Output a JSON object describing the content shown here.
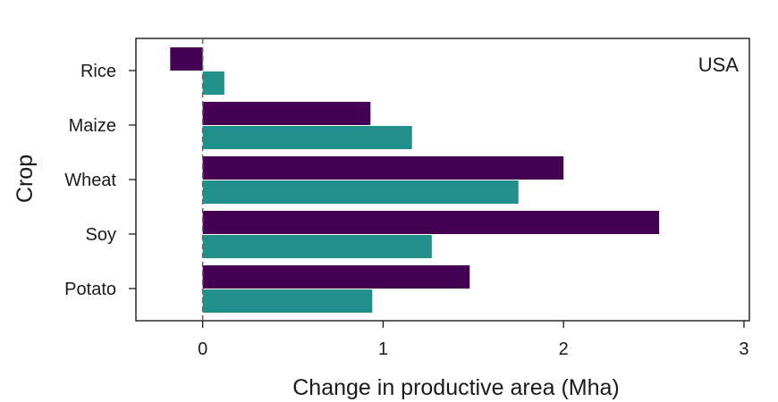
{
  "chart_data": {
    "type": "bar",
    "orientation": "horizontal",
    "panel_label": "USA",
    "xlabel": "Change in productive area (Mha)",
    "ylabel": "Crop",
    "categories": [
      "Rice",
      "Maize",
      "Wheat",
      "Soy",
      "Potato"
    ],
    "x_ticks": [
      "0",
      "1",
      "2",
      "3"
    ],
    "xlim": [
      -0.37,
      3.03
    ],
    "zero_reference_line": true,
    "grid": false,
    "legend": "none",
    "series": [
      {
        "color": "#440154",
        "values": [
          -0.18,
          0.93,
          2.0,
          2.53,
          1.48
        ]
      },
      {
        "color": "#21908C",
        "values": [
          0.12,
          1.16,
          1.75,
          1.27,
          0.94
        ]
      }
    ]
  }
}
